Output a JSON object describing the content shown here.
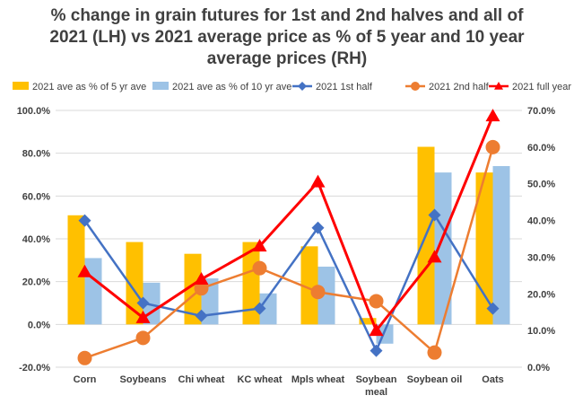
{
  "title_lines": [
    "% change in grain futures for 1st and 2nd halves and all of",
    "2021 (LH) vs 2021 average price as % of 5 year and 10 year",
    "average prices (RH)"
  ],
  "chart_data": {
    "type": "bar",
    "categories": [
      "Corn",
      "Soybeans",
      "Chi wheat",
      "KC wheat",
      "Mpls wheat",
      "Soybean meal",
      "Soybean oil",
      "Oats"
    ],
    "left_axis": {
      "ylim": [
        -20,
        100
      ],
      "ticks": [
        "-20.0%",
        "0.0%",
        "20.0%",
        "40.0%",
        "60.0%",
        "80.0%",
        "100.0%"
      ]
    },
    "right_axis": {
      "ylim": [
        0,
        70
      ],
      "ticks": [
        "0.0%",
        "10.0%",
        "20.0%",
        "30.0%",
        "40.0%",
        "50.0%",
        "60.0%",
        "70.0%"
      ]
    },
    "series": [
      {
        "name": "2021 ave as % of 5 yr ave",
        "kind": "bar",
        "axis": "left",
        "color": "#FFC000",
        "values": [
          51,
          38.5,
          33,
          38.5,
          36.5,
          3,
          83,
          71
        ]
      },
      {
        "name": "2021 ave as % of 10 yr ave",
        "kind": "bar",
        "axis": "left",
        "color": "#9DC3E6",
        "values": [
          31,
          19.5,
          21.5,
          14.5,
          27,
          -9,
          71,
          74
        ]
      },
      {
        "name": "2021 1st half",
        "kind": "line",
        "axis": "right",
        "color": "#4472C4",
        "marker": "diamond",
        "values": [
          40,
          17.5,
          14,
          16,
          38,
          4.5,
          41.5,
          16
        ]
      },
      {
        "name": "2021 2nd half",
        "kind": "line",
        "axis": "right",
        "color": "#ED7D31",
        "marker": "circle",
        "values": [
          2.5,
          8,
          21.5,
          27,
          20.5,
          18,
          4,
          60
        ]
      },
      {
        "name": "2021 full year",
        "kind": "line",
        "axis": "right",
        "color": "#FF0000",
        "marker": "triangle",
        "values": [
          26,
          13.5,
          24,
          33,
          50.5,
          10,
          30,
          68.5
        ]
      }
    ],
    "legend_position": "top",
    "grid": true
  }
}
